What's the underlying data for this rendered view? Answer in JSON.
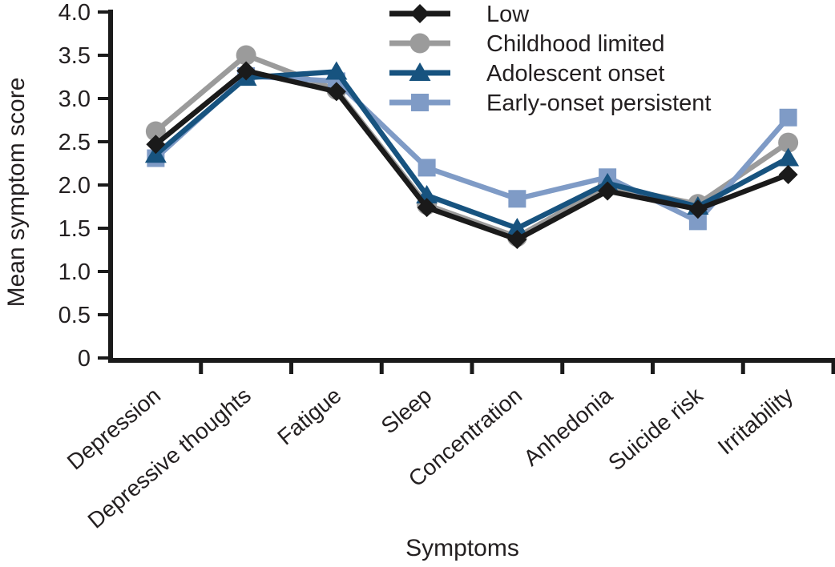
{
  "chart_data": {
    "type": "line",
    "title": "",
    "xlabel": "Symptoms",
    "ylabel": "Mean symptom score",
    "categories": [
      "Depression",
      "Depressive thoughts",
      "Fatigue",
      "Sleep",
      "Concentration",
      "Anhedonia",
      "Suicide risk",
      "Irritability"
    ],
    "y_ticks": [
      "0",
      "0.5",
      "1.0",
      "1.5",
      "2.0",
      "2.5",
      "3.0",
      "3.5",
      "4.0"
    ],
    "y_tick_values": [
      0,
      0.5,
      1.0,
      1.5,
      2.0,
      2.5,
      3.0,
      3.5,
      4.0
    ],
    "ylim": [
      0,
      4.0
    ],
    "grid": false,
    "legend_position": "top-center",
    "axis_color": "#1a1a1a",
    "text_color": "#231f20",
    "series": [
      {
        "name": "Low",
        "marker": "diamond",
        "color": "#1a1a1a",
        "values": [
          2.47,
          3.32,
          3.08,
          1.74,
          1.37,
          1.93,
          1.72,
          2.12
        ]
      },
      {
        "name": "Childhood limited",
        "marker": "circle",
        "color": "#9b9b9b",
        "values": [
          2.62,
          3.5,
          3.1,
          1.77,
          1.4,
          1.99,
          1.78,
          2.49
        ]
      },
      {
        "name": "Adolescent onset",
        "marker": "triangle",
        "color": "#17537f",
        "values": [
          2.35,
          3.24,
          3.31,
          1.88,
          1.5,
          2.02,
          1.75,
          2.31
        ]
      },
      {
        "name": "Early-onset persistent",
        "marker": "square",
        "color": "#7f9bc6",
        "values": [
          2.31,
          3.26,
          3.2,
          2.2,
          1.84,
          2.09,
          1.58,
          2.78
        ]
      }
    ]
  }
}
